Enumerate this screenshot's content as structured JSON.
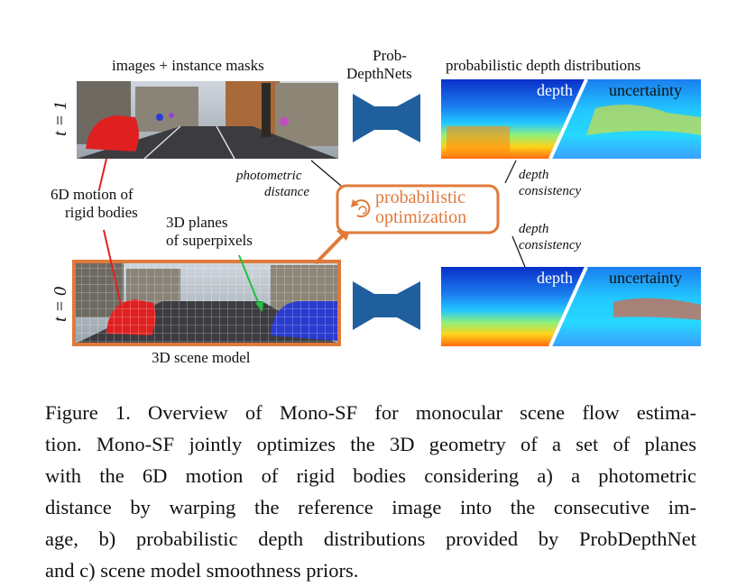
{
  "figure": {
    "top_left_title": "images + instance masks",
    "net_label_line1": "Prob-",
    "net_label_line2": "DepthNets",
    "top_right_title": "probabilistic depth distributions",
    "time_t1": "t = 1",
    "time_t0": "t = 0",
    "depth_label_top": "depth",
    "uncertainty_label_top": "uncertainty",
    "depth_label_bottom": "depth",
    "uncertainty_label_bottom": "uncertainty",
    "photometric_line1": "photometric",
    "photometric_line2": "distance",
    "motion_line1": "6D motion of",
    "motion_line2": "rigid bodies",
    "planes_line1": "3D planes",
    "planes_line2": "of superpixels",
    "optim_line1": "probabilistic",
    "optim_line2": "optimization",
    "consistency_a_line1": "depth",
    "consistency_a_line2": "consistency",
    "consistency_b_line1": "depth",
    "consistency_b_line2": "consistency",
    "scene_model_label": "3D scene model"
  },
  "caption": {
    "line1": "Figure 1. Overview of Mono-SF for monocular scene flow estima-",
    "line2": "tion. Mono-SF jointly optimizes the 3D geometry of a set of planes",
    "line3": "with the 6D motion of rigid bodies considering a) a photometric",
    "line4": "distance by warping the reference image into the consecutive im-",
    "line5": "age, b) probabilistic depth distributions provided by ProbDepthNet",
    "line6": "and c) scene model smoothness priors."
  },
  "colors": {
    "accent_orange": "#e07a3a",
    "network_blue": "#1f5f9e",
    "red_mask": "#e02020",
    "blue_mask": "#2a3bd0",
    "green_arrow": "#22c040"
  }
}
